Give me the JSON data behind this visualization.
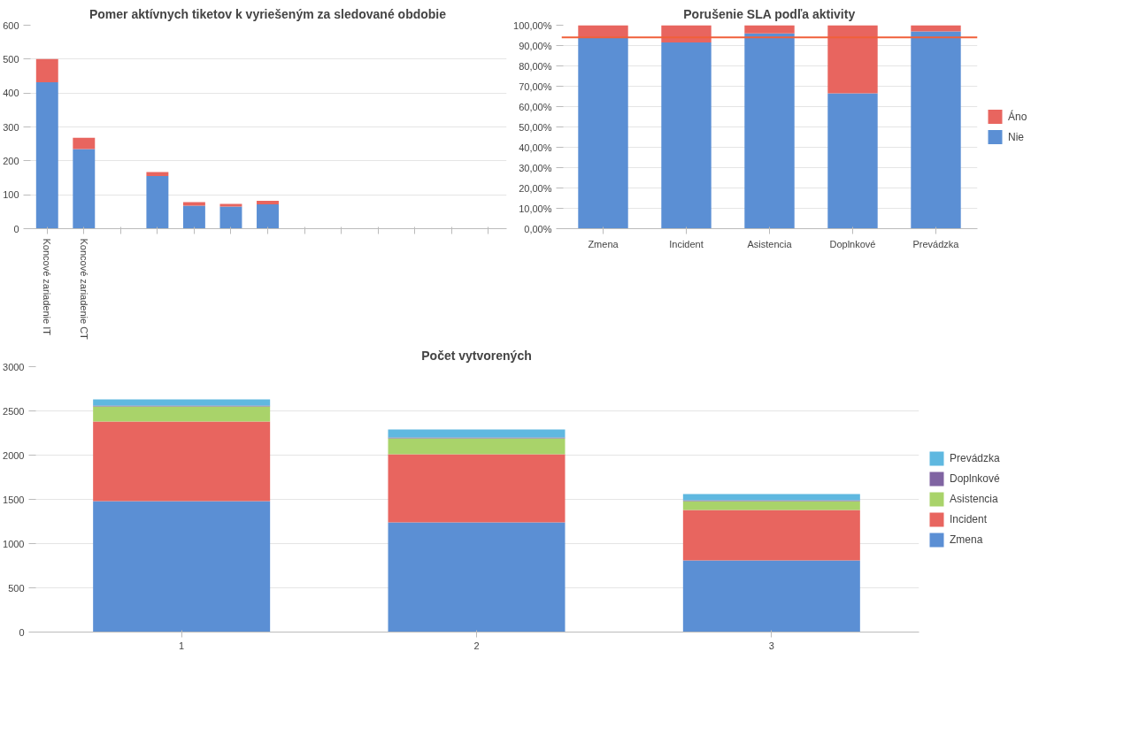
{
  "chart_data": [
    {
      "type": "bar",
      "title": "Pomer aktívnych tiketov k vyriešeným za sledované obdobie",
      "stacked": true,
      "categories": [
        "Koncové zariadenie IT",
        "Koncové zariadenie CT",
        null,
        null,
        null,
        null,
        null,
        null,
        null,
        null,
        null,
        null,
        null
      ],
      "series": [
        {
          "color": "#5b8fd4",
          "values": [
            432,
            235,
            null,
            155,
            68,
            65,
            72,
            null,
            null,
            null,
            null,
            null,
            null
          ]
        },
        {
          "color": "#e8655f",
          "values": [
            68,
            33,
            null,
            12,
            10,
            8,
            10,
            null,
            null,
            null,
            null,
            null,
            null
          ]
        }
      ],
      "ylim": [
        0,
        600
      ],
      "yticks": [
        0,
        100,
        200,
        300,
        400,
        500,
        600
      ],
      "grid": "y",
      "legend": false
    },
    {
      "type": "bar",
      "title": "Porušenie SLA podľa aktivity",
      "stacked": true,
      "categories": [
        "Zmena",
        "Incident",
        "Asistencia",
        "Doplnkové",
        "Prevádzka"
      ],
      "series": [
        {
          "name": "Nie",
          "color": "#5b8fd4",
          "values": [
            94,
            91.5,
            96,
            66.5,
            97
          ]
        },
        {
          "name": "Áno",
          "color": "#e8655f",
          "values": [
            6,
            8.5,
            4,
            33.5,
            3
          ]
        }
      ],
      "ylim": [
        0,
        100
      ],
      "yticks": [
        {
          "value": 0,
          "label": "0,00%"
        },
        {
          "value": 10,
          "label": "10,00%"
        },
        {
          "value": 20,
          "label": "20,00%"
        },
        {
          "value": 30,
          "label": "30,00%"
        },
        {
          "value": 40,
          "label": "40,00%"
        },
        {
          "value": 50,
          "label": "50,00%"
        },
        {
          "value": 60,
          "label": "60,00%"
        },
        {
          "value": 70,
          "label": "70,00%"
        },
        {
          "value": 80,
          "label": "80,00%"
        },
        {
          "value": 90,
          "label": "90,00%"
        },
        {
          "value": 100,
          "label": "100,00%"
        }
      ],
      "ref_lines": [
        {
          "axis": "y",
          "value": 94,
          "color": "#f0603a"
        }
      ],
      "grid": "y",
      "legend": "right"
    },
    {
      "type": "bar",
      "title": "Počet vytvorených",
      "stacked": true,
      "categories": [
        "1",
        "2",
        "3"
      ],
      "series": [
        {
          "name": "Zmena",
          "color": "#5b8fd4",
          "values": [
            1480,
            1240,
            810
          ]
        },
        {
          "name": "Incident",
          "color": "#e8655f",
          "values": [
            900,
            770,
            570
          ]
        },
        {
          "name": "Asistencia",
          "color": "#a9d36a",
          "values": [
            170,
            180,
            100
          ]
        },
        {
          "name": "Doplnkové",
          "color": "#8064a2",
          "values": [
            10,
            10,
            10
          ]
        },
        {
          "name": "Prevádzka",
          "color": "#5fb8e0",
          "values": [
            70,
            90,
            70
          ]
        }
      ],
      "ylim": [
        0,
        3000
      ],
      "yticks": [
        0,
        500,
        1000,
        1500,
        2000,
        2500,
        3000
      ],
      "grid": "y",
      "legend": "right"
    }
  ]
}
